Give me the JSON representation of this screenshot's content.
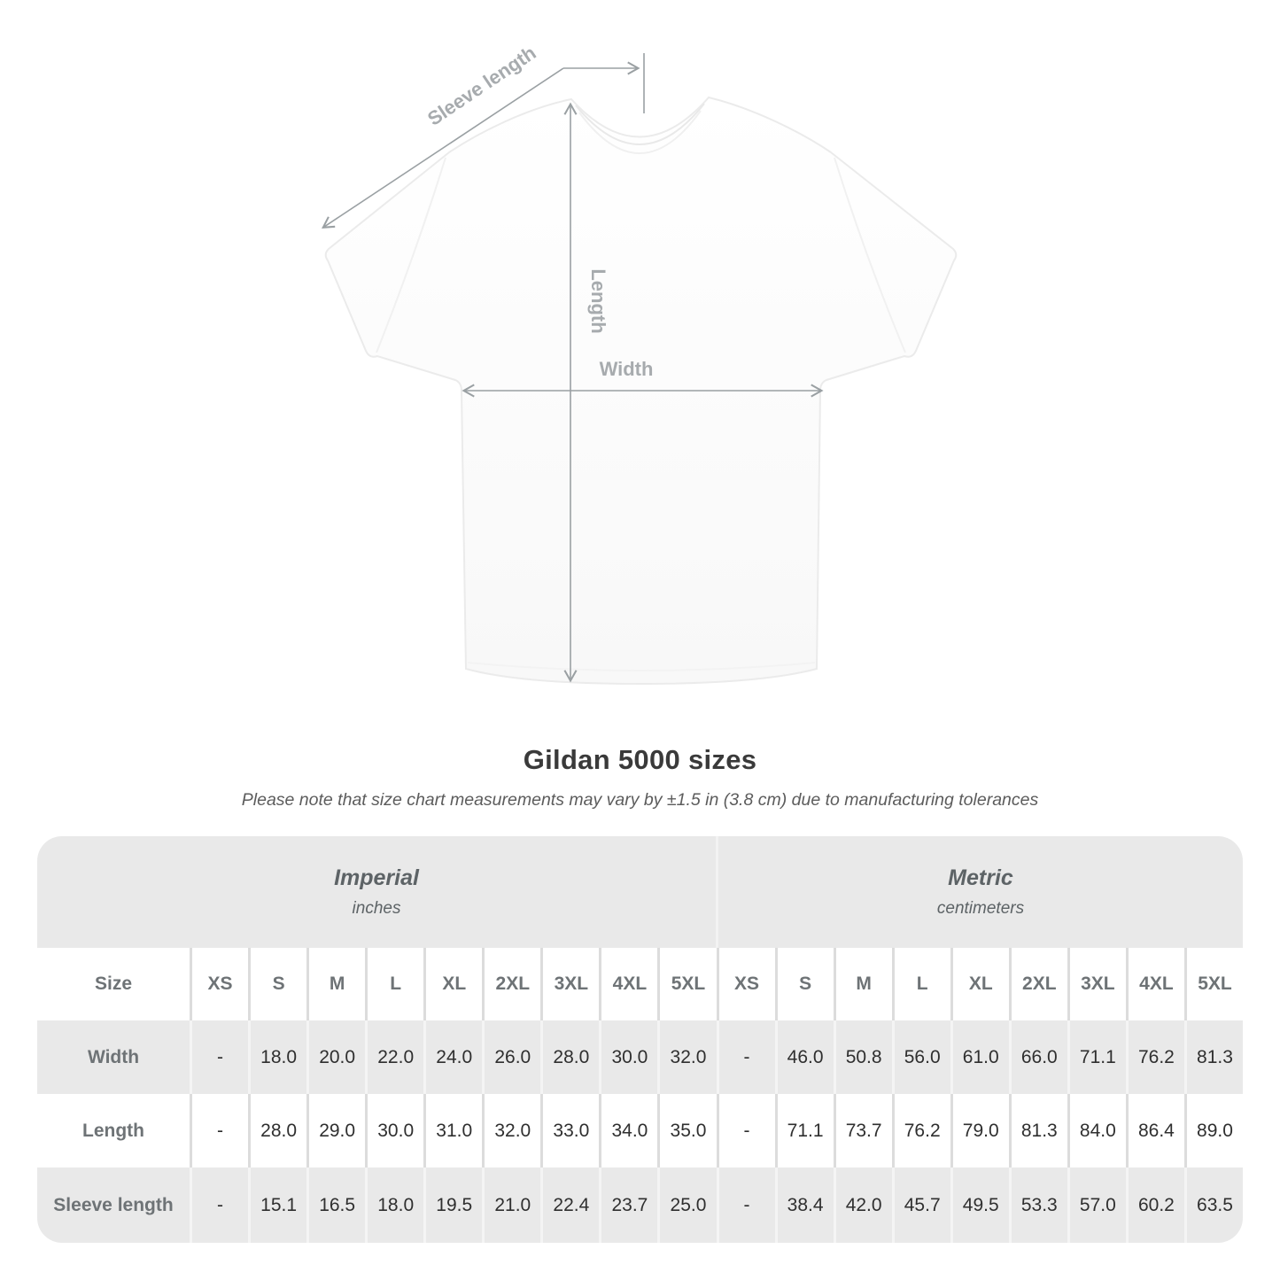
{
  "diagram": {
    "labels": {
      "sleeve_length": "Sleeve length",
      "length": "Length",
      "width": "Width"
    },
    "annotation_color": "#9aa0a3",
    "annotation_text_color": "#a7abae"
  },
  "caption": {
    "title": "Gildan 5000 sizes",
    "subtitle": "Please note that size chart measurements may vary by ±1.5 in (3.8 cm) due to manufacturing tolerances"
  },
  "table": {
    "groups": [
      {
        "label": "Imperial",
        "unit": "inches"
      },
      {
        "label": "Metric",
        "unit": "centimeters"
      }
    ],
    "size_header": "Size",
    "sizes": [
      "XS",
      "S",
      "M",
      "L",
      "XL",
      "2XL",
      "3XL",
      "4XL",
      "5XL"
    ],
    "rows": [
      {
        "label": "Width",
        "imperial": [
          "-",
          "18.0",
          "20.0",
          "22.0",
          "24.0",
          "26.0",
          "28.0",
          "30.0",
          "32.0"
        ],
        "metric": [
          "-",
          "46.0",
          "50.8",
          "56.0",
          "61.0",
          "66.0",
          "71.1",
          "76.2",
          "81.3"
        ]
      },
      {
        "label": "Length",
        "imperial": [
          "-",
          "28.0",
          "29.0",
          "30.0",
          "31.0",
          "32.0",
          "33.0",
          "34.0",
          "35.0"
        ],
        "metric": [
          "-",
          "71.1",
          "73.7",
          "76.2",
          "79.0",
          "81.3",
          "84.0",
          "86.4",
          "89.0"
        ]
      },
      {
        "label": "Sleeve length",
        "imperial": [
          "-",
          "15.1",
          "16.5",
          "18.0",
          "19.5",
          "21.0",
          "22.4",
          "23.7",
          "25.0"
        ],
        "metric": [
          "-",
          "38.4",
          "42.0",
          "45.7",
          "49.5",
          "53.3",
          "57.0",
          "60.2",
          "63.5"
        ]
      }
    ]
  },
  "colors": {
    "table_gray": "#e9e9e9",
    "separator_on_white": "#dcdcdc",
    "separator_on_gray": "#f4f4f4",
    "title_text": "#3a3a3a",
    "header_text": "#5d6366",
    "row_label_text": "#6e7376",
    "value_text": "#2f2f2f"
  }
}
